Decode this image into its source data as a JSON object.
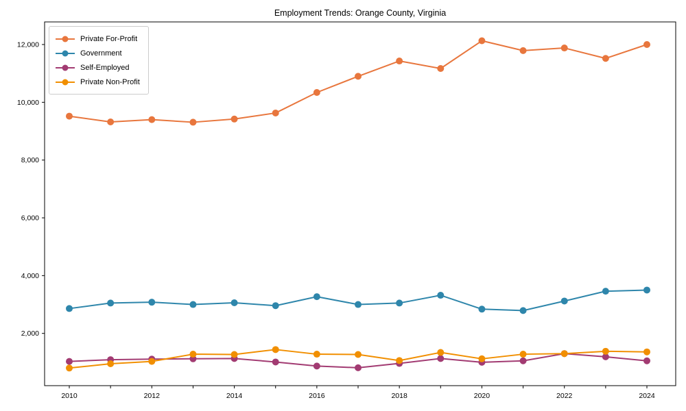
{
  "title": "Employment Trends: Orange County, Virginia",
  "legend": {
    "items": [
      {
        "label": "Private For-Profit",
        "color": "#e8763d"
      },
      {
        "label": "Government",
        "color": "#2e86ab"
      },
      {
        "label": "Self-Employed",
        "color": "#a23b72"
      },
      {
        "label": "Private Non-Profit",
        "color": "#f18f01"
      }
    ]
  },
  "chart_data": {
    "type": "line",
    "title": "Employment Trends: Orange County, Virginia",
    "x": [
      2010,
      2011,
      2012,
      2013,
      2014,
      2015,
      2016,
      2017,
      2018,
      2019,
      2020,
      2021,
      2022,
      2023,
      2024
    ],
    "x_tick_labeled": [
      2010,
      2012,
      2014,
      2016,
      2018,
      2020,
      2022,
      2024
    ],
    "y_ticks": [
      2000,
      4000,
      6000,
      8000,
      10000,
      12000
    ],
    "y_tick_labels": [
      "2,000",
      "4,000",
      "6,000",
      "8,000",
      "10,000",
      "12,000"
    ],
    "ylim": [
      190,
      12780
    ],
    "grid": false,
    "legend_position": "upper left",
    "marker": "circle",
    "series": [
      {
        "name": "Private For-Profit",
        "color": "#e8763d",
        "values": [
          9520,
          9320,
          9400,
          9310,
          9420,
          9630,
          10340,
          10900,
          11430,
          11170,
          12130,
          11790,
          11880,
          11520,
          12000
        ]
      },
      {
        "name": "Government",
        "color": "#2e86ab",
        "values": [
          2860,
          3050,
          3080,
          3000,
          3060,
          2960,
          3270,
          3000,
          3050,
          3320,
          2840,
          2790,
          3120,
          3460,
          3500
        ]
      },
      {
        "name": "Self-Employed",
        "color": "#a23b72",
        "values": [
          1030,
          1090,
          1110,
          1120,
          1130,
          1010,
          870,
          810,
          960,
          1130,
          1000,
          1050,
          1300,
          1190,
          1050
        ]
      },
      {
        "name": "Private Non-Profit",
        "color": "#f18f01",
        "values": [
          800,
          950,
          1030,
          1280,
          1270,
          1440,
          1280,
          1270,
          1060,
          1340,
          1120,
          1280,
          1300,
          1380,
          1360
        ]
      }
    ]
  }
}
